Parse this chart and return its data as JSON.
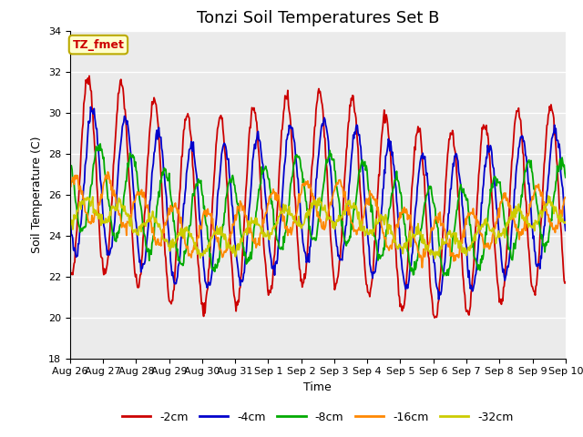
{
  "title": "Tonzi Soil Temperatures Set B",
  "xlabel": "Time",
  "ylabel": "Soil Temperature (C)",
  "ylim": [
    18,
    34
  ],
  "yticks": [
    18,
    20,
    22,
    24,
    26,
    28,
    30,
    32,
    34
  ],
  "xtick_labels": [
    "Aug 26",
    "Aug 27",
    "Aug 28",
    "Aug 29",
    "Aug 30",
    "Aug 31",
    "Sep 1",
    "Sep 2",
    "Sep 3",
    "Sep 4",
    "Sep 5",
    "Sep 6",
    "Sep 7",
    "Sep 8",
    "Sep 9",
    "Sep 10"
  ],
  "colors": {
    "-2cm": "#cc0000",
    "-4cm": "#0000cc",
    "-8cm": "#00aa00",
    "-16cm": "#ff8800",
    "-32cm": "#cccc00"
  },
  "legend_labels": [
    "-2cm",
    "-4cm",
    "-8cm",
    "-16cm",
    "-32cm"
  ],
  "annotation_text": "TZ_fmet",
  "annotation_facecolor": "#ffffcc",
  "annotation_edgecolor": "#bbaa00",
  "annotation_textcolor": "#cc0000",
  "background_color": "#ebebeb",
  "title_fontsize": 13,
  "axis_label_fontsize": 9,
  "tick_fontsize": 8,
  "linewidth": 1.3,
  "n_points_per_day": 48,
  "n_days": 15,
  "series": {
    "-2cm": {
      "mean": 26.2,
      "amplitude": 4.8,
      "phase_shift": 0.05,
      "trend": -0.08,
      "amp_trend": -0.02
    },
    "-4cm": {
      "mean": 25.9,
      "amplitude": 3.5,
      "phase_shift": 0.18,
      "trend": -0.06,
      "amp_trend": -0.015
    },
    "-8cm": {
      "mean": 25.5,
      "amplitude": 2.2,
      "phase_shift": 0.38,
      "trend": -0.05,
      "amp_trend": -0.01
    },
    "-16cm": {
      "mean": 25.0,
      "amplitude": 1.1,
      "phase_shift": 0.65,
      "trend": -0.03,
      "amp_trend": -0.005
    },
    "-32cm": {
      "mean": 24.5,
      "amplitude": 0.55,
      "phase_shift": 1.0,
      "trend": -0.015,
      "amp_trend": -0.002
    }
  }
}
